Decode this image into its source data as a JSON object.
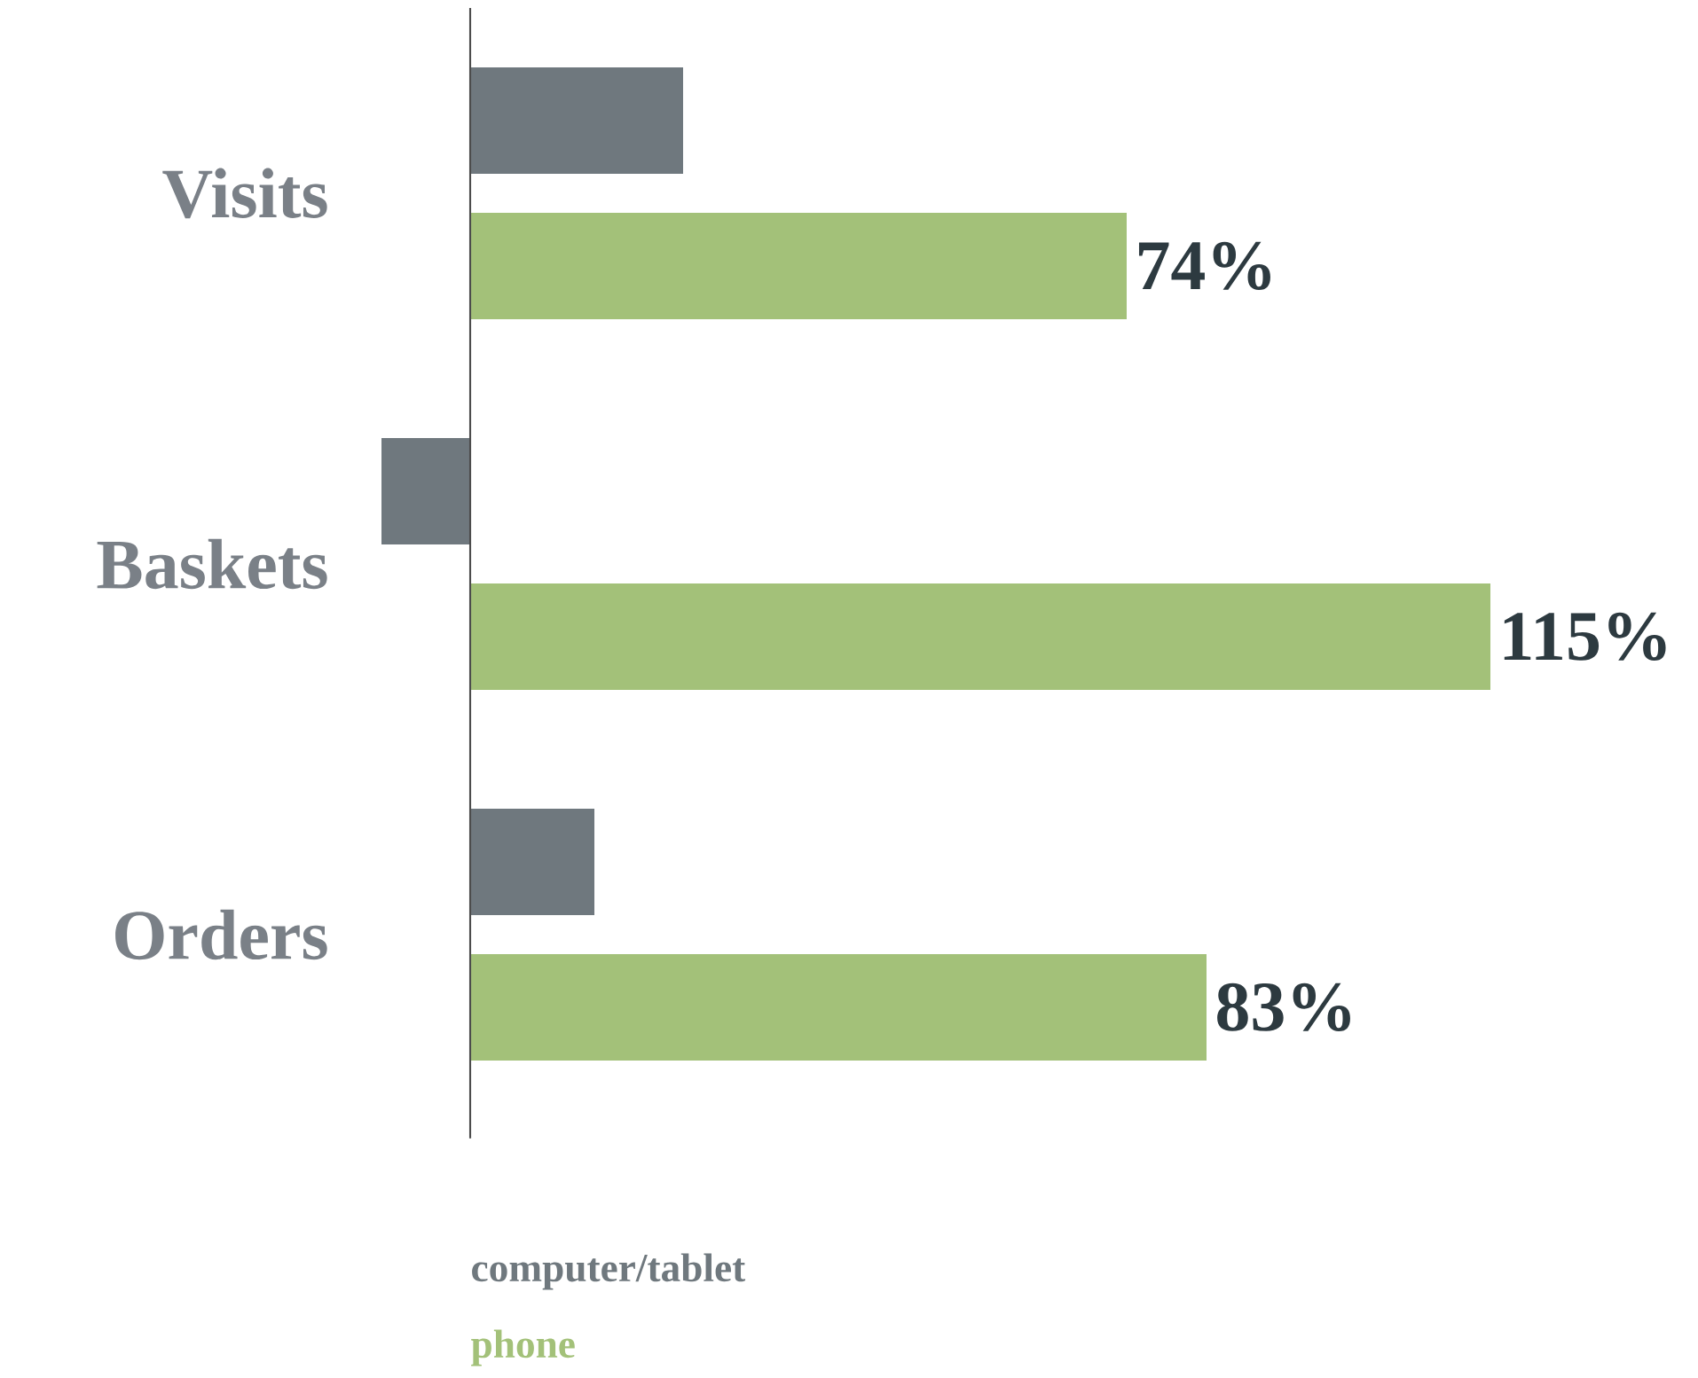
{
  "chart_data": {
    "type": "bar",
    "orientation": "horizontal",
    "categories": [
      "Visits",
      "Baskets",
      "Orders"
    ],
    "series": [
      {
        "name": "computer/tablet",
        "color": "#6f787e",
        "values": [
          24,
          -10,
          14
        ]
      },
      {
        "name": "phone",
        "color": "#a3c179",
        "values": [
          74,
          115,
          83
        ],
        "value_labels": [
          "74%",
          "115%",
          "83%"
        ]
      }
    ]
  }
}
